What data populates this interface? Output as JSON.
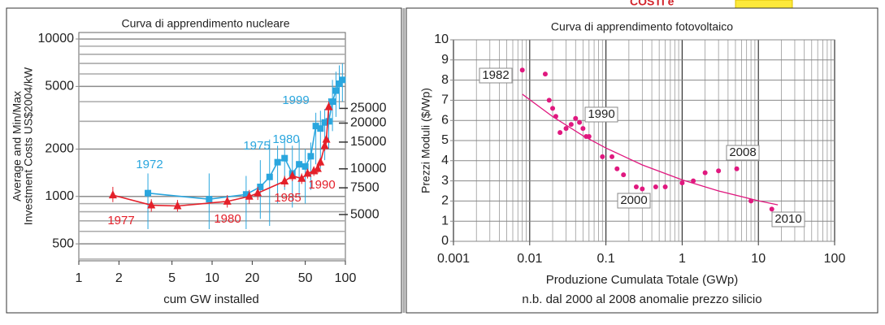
{
  "header": {
    "text": "COSTI e"
  },
  "chart_data": [
    {
      "type": "line",
      "title": "Curva di apprendimento nucleare",
      "xlabel": "cum GW installed",
      "ylabel": [
        "Average and Min/Max",
        "Investment Costs US$2004/kW"
      ],
      "xscale": "log",
      "yscale": "log",
      "y2scale": "log",
      "xlim": [
        1,
        100
      ],
      "ylim": [
        390,
        11000
      ],
      "y2lim": [
        2480,
        79000
      ],
      "xticks": [
        1,
        2,
        5,
        10,
        20,
        50,
        100
      ],
      "yticks": [
        500,
        1000,
        2000,
        5000,
        10000
      ],
      "y2ticks": [
        5000,
        7500,
        10000,
        15000,
        20000,
        25000
      ],
      "grid": true,
      "series": [
        {
          "color": "#2aa6de",
          "marker": "square",
          "x": [
            3.3,
            9.5,
            18,
            23,
            27,
            31,
            35,
            40,
            45,
            50,
            55,
            60,
            65,
            70,
            75,
            80,
            85,
            90,
            95
          ],
          "values": [
            1050,
            960,
            1030,
            1150,
            1330,
            1650,
            1750,
            1400,
            1600,
            1550,
            1800,
            2800,
            2700,
            2950,
            3000,
            4000,
            4700,
            5200,
            5500
          ],
          "low": [
            620,
            620,
            620,
            720,
            650,
            900,
            1100,
            850,
            1000,
            900,
            1100,
            1600,
            1500,
            1700,
            2000,
            2600,
            3200,
            3600,
            4000
          ],
          "high": [
            1400,
            1400,
            1350,
            1700,
            2300,
            2100,
            2300,
            2100,
            2300,
            2000,
            2200,
            3400,
            3500,
            3600,
            4200,
            5500,
            6200,
            6800,
            7000
          ]
        },
        {
          "color": "#e4202a",
          "marker": "triangle",
          "x": [
            1.8,
            3.5,
            5.5,
            13,
            19,
            22,
            35,
            40,
            47,
            52,
            58,
            62,
            65,
            70,
            72,
            75
          ],
          "values": [
            1020,
            880,
            870,
            930,
            1000,
            1050,
            1250,
            1350,
            1300,
            1400,
            1450,
            1500,
            1650,
            2100,
            2300,
            3700
          ],
          "low": [
            920,
            800,
            800,
            850,
            900,
            950,
            1150,
            1250,
            1200,
            1300,
            1350,
            1400,
            1550,
            1950,
            2150,
            3400
          ],
          "high": [
            1150,
            960,
            950,
            1020,
            1100,
            1150,
            1350,
            1450,
            1400,
            1500,
            1550,
            1600,
            1750,
            2250,
            2450,
            4000
          ]
        }
      ],
      "annotations": [
        {
          "text": "1972",
          "color": "#2aa6de"
        },
        {
          "text": "1975",
          "color": "#2aa6de"
        },
        {
          "text": "1980",
          "color": "#2aa6de"
        },
        {
          "text": "1999",
          "color": "#2aa6de"
        },
        {
          "text": "1977",
          "color": "#e4202a"
        },
        {
          "text": "1980",
          "color": "#e4202a"
        },
        {
          "text": "1985",
          "color": "#e4202a"
        },
        {
          "text": "1990",
          "color": "#e4202a"
        }
      ]
    },
    {
      "type": "scatter",
      "title": "Curva di apprendimento fotovoltaico",
      "xlabel": "Produzione Cumulata Totale (GWp)",
      "ylabel": [
        "Prezzi Moduli ($/Wp)"
      ],
      "note": "n.b. dal 2000 al 2008 anomalie prezzo silicio",
      "xscale": "log",
      "yscale": "linear",
      "xlim": [
        0.001,
        100
      ],
      "ylim": [
        0,
        10
      ],
      "xticks": [
        0.001,
        0.01,
        0.1,
        1,
        10,
        100
      ],
      "yticks": [
        0,
        1,
        2,
        3,
        4,
        5,
        6,
        7,
        8,
        9,
        10
      ],
      "grid": true,
      "series": [
        {
          "color": "#e0187f",
          "marker": "circle",
          "x": [
            0.008,
            0.016,
            0.018,
            0.02,
            0.022,
            0.025,
            0.03,
            0.035,
            0.04,
            0.045,
            0.05,
            0.055,
            0.06,
            0.09,
            0.12,
            0.14,
            0.17,
            0.25,
            0.3,
            0.45,
            0.6,
            1.0,
            1.4,
            2.0,
            3.0,
            5.2,
            8,
            15
          ],
          "values": [
            8.5,
            8.3,
            7.0,
            6.6,
            6.2,
            5.4,
            5.6,
            5.8,
            6.1,
            5.9,
            5.6,
            5.2,
            5.2,
            4.2,
            4.2,
            3.6,
            3.3,
            2.7,
            2.6,
            2.7,
            2.7,
            2.9,
            3.0,
            3.4,
            3.5,
            3.6,
            2.0,
            1.6
          ]
        },
        {
          "color": "#e0187f",
          "marker": "none",
          "x": [
            0.008,
            0.02,
            0.05,
            0.1,
            0.3,
            1,
            3,
            10,
            18
          ],
          "values": [
            7.3,
            6.19,
            5.24,
            4.63,
            3.79,
            3.05,
            2.5,
            2.01,
            1.81
          ]
        }
      ],
      "annotations": [
        {
          "text": "1982",
          "color": "#222"
        },
        {
          "text": "1990",
          "color": "#222"
        },
        {
          "text": "2000",
          "color": "#222"
        },
        {
          "text": "2008",
          "color": "#222"
        },
        {
          "text": "2010",
          "color": "#222"
        }
      ]
    }
  ]
}
